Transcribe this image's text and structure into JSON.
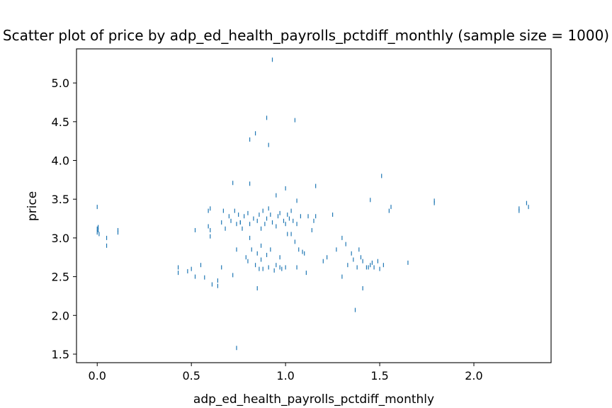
{
  "chart_data": {
    "type": "scatter",
    "title": "Scatter plot of price by adp_ed_health_payrolls_pctdiff_monthly (sample size = 1000)",
    "xlabel": "adp_ed_health_payrolls_pctdiff_monthly",
    "ylabel": "price",
    "xlim": [
      -0.11,
      2.41
    ],
    "ylim": [
      1.39,
      5.44
    ],
    "xticks": [
      "0.0",
      "0.5",
      "1.0",
      "1.5",
      "2.0"
    ],
    "xtick_values": [
      0.0,
      0.5,
      1.0,
      1.5,
      2.0
    ],
    "yticks": [
      "1.5",
      "2.0",
      "2.5",
      "3.0",
      "3.5",
      "4.0",
      "4.5",
      "5.0"
    ],
    "ytick_values": [
      1.5,
      2.0,
      2.5,
      3.0,
      3.5,
      4.0,
      4.5,
      5.0
    ],
    "grid": false,
    "marker": "|",
    "color": "#1f77b4",
    "series": [
      {
        "x": [
          0.0,
          0.0,
          0.005,
          0.01,
          0.0,
          0.005,
          0.05,
          0.05,
          0.11,
          0.11,
          0.43,
          0.43,
          0.48,
          0.5,
          0.52,
          0.52,
          0.55,
          0.57,
          0.59,
          0.59,
          0.6,
          0.6,
          0.6,
          0.64,
          0.64,
          0.66,
          0.66,
          0.67,
          0.68,
          0.7,
          0.71,
          0.72,
          0.73,
          0.74,
          0.74,
          0.75,
          0.76,
          0.77,
          0.78,
          0.79,
          0.8,
          0.8,
          0.81,
          0.81,
          0.82,
          0.83,
          0.84,
          0.85,
          0.85,
          0.86,
          0.86,
          0.87,
          0.87,
          0.88,
          0.88,
          0.89,
          0.9,
          0.9,
          0.91,
          0.91,
          0.92,
          0.92,
          0.93,
          0.94,
          0.95,
          0.95,
          0.96,
          0.97,
          0.97,
          0.98,
          0.99,
          1.0,
          1.0,
          1.01,
          1.01,
          1.02,
          1.03,
          1.04,
          1.05,
          1.06,
          1.06,
          1.07,
          1.08,
          1.09,
          1.1,
          1.12,
          1.14,
          1.15,
          1.16,
          1.2,
          1.22,
          1.25,
          1.27,
          1.3,
          1.3,
          1.32,
          1.33,
          1.35,
          1.36,
          1.38,
          1.39,
          1.4,
          1.41,
          1.43,
          1.44,
          1.45,
          1.46,
          1.47,
          1.49,
          1.5,
          1.52,
          1.55,
          1.56,
          1.65,
          1.79,
          1.79,
          2.24,
          2.24,
          2.28,
          2.29,
          0.74,
          0.91,
          1.05,
          0.93,
          0.9,
          0.81,
          0.84,
          0.72,
          0.81,
          1.0,
          1.06,
          1.16,
          1.51,
          1.41,
          1.37,
          1.45,
          0.76,
          0.85,
          1.11,
          0.97,
          0.61,
          0.95,
          1.03,
          0.87
        ],
        "y": [
          3.12,
          3.07,
          3.1,
          3.05,
          3.4,
          3.14,
          3.0,
          2.9,
          3.07,
          3.1,
          2.55,
          2.62,
          2.57,
          2.6,
          2.5,
          3.1,
          2.65,
          2.49,
          3.35,
          3.15,
          3.02,
          3.38,
          3.1,
          2.45,
          2.38,
          2.62,
          3.2,
          3.35,
          3.12,
          3.28,
          3.22,
          2.52,
          3.35,
          3.18,
          2.85,
          3.3,
          3.2,
          3.12,
          3.28,
          2.75,
          3.32,
          2.7,
          3.18,
          3.0,
          2.85,
          3.25,
          2.65,
          3.22,
          2.8,
          3.3,
          2.6,
          3.12,
          2.72,
          3.35,
          2.6,
          3.18,
          2.78,
          3.25,
          3.38,
          2.62,
          3.3,
          2.85,
          3.2,
          2.58,
          3.15,
          2.65,
          3.28,
          2.62,
          3.32,
          2.6,
          3.22,
          2.62,
          3.18,
          3.05,
          3.3,
          3.25,
          3.35,
          3.22,
          2.95,
          3.18,
          2.62,
          2.85,
          3.28,
          2.82,
          2.8,
          3.28,
          3.1,
          3.22,
          3.28,
          2.7,
          2.75,
          3.3,
          2.85,
          3.0,
          2.5,
          2.92,
          2.65,
          2.8,
          2.72,
          2.62,
          2.85,
          2.75,
          2.7,
          2.62,
          2.62,
          2.65,
          2.68,
          2.62,
          2.7,
          2.6,
          2.65,
          3.35,
          3.4,
          2.68,
          3.45,
          3.48,
          3.38,
          3.35,
          3.45,
          3.4,
          1.58,
          4.2,
          4.52,
          5.3,
          4.55,
          4.27,
          4.35,
          3.71,
          3.7,
          3.64,
          3.48,
          3.67,
          3.8,
          2.35,
          2.07,
          3.49,
          3.2,
          2.35,
          2.55,
          2.75,
          2.4,
          3.55,
          3.05,
          2.9
        ]
      }
    ]
  }
}
